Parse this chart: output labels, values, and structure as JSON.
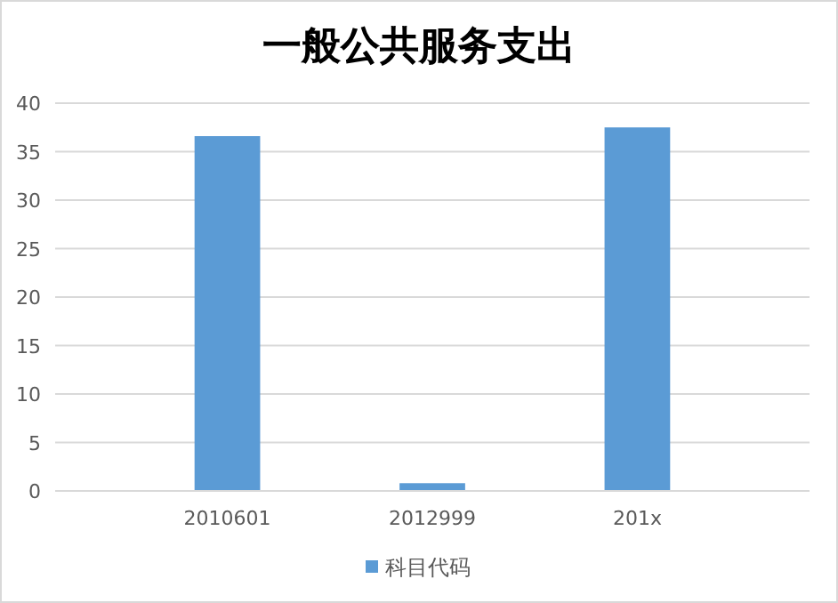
{
  "chart_data": {
    "type": "bar",
    "title": "一般公共服务支出",
    "categories": [
      "2010601",
      "2012999",
      "201x"
    ],
    "series": [
      {
        "name": "科目代码",
        "color": "#5b9bd5",
        "values": [
          36.6,
          0.8,
          37.5
        ]
      }
    ],
    "ylim": [
      0,
      40
    ],
    "yticks": [
      0,
      5,
      10,
      15,
      20,
      25,
      30,
      35,
      40
    ],
    "grid": "y",
    "legend": "bottom"
  }
}
